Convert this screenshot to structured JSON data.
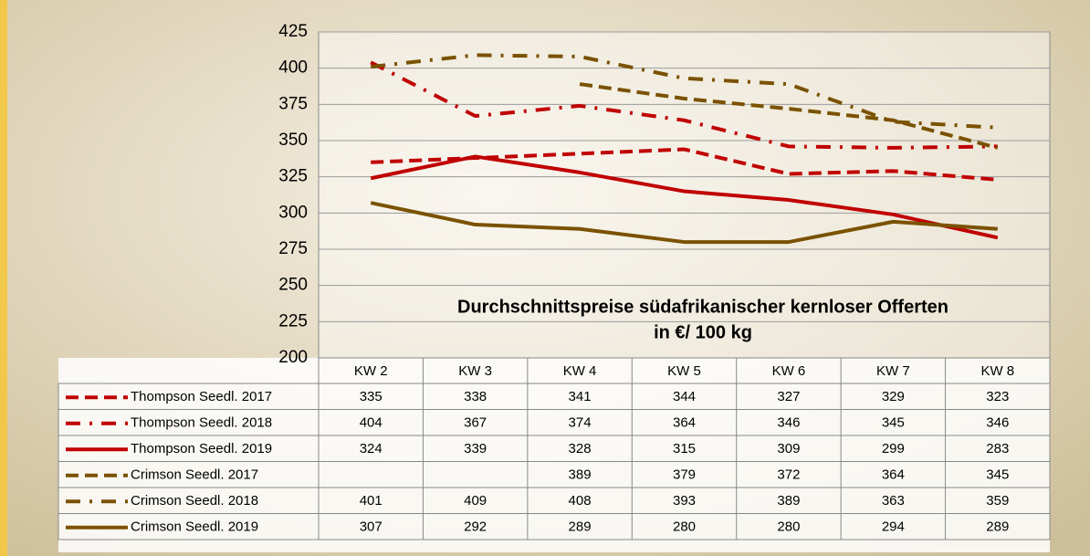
{
  "chart_data": {
    "type": "line",
    "title": "Durchschnittspreise südafrikanischer kernloser Offerten",
    "subtitle": "in €/ 100 kg",
    "categories": [
      "KW 2",
      "KW 3",
      "KW 4",
      "KW 5",
      "KW 6",
      "KW 7",
      "KW 8"
    ],
    "ylim": [
      200,
      425
    ],
    "yticks": [
      200,
      225,
      250,
      275,
      300,
      325,
      350,
      375,
      400,
      425
    ],
    "grid": true,
    "series": [
      {
        "name": "Thompson Seedl. 2017",
        "color": "#c00000",
        "style": "dashed",
        "values": [
          335,
          338,
          341,
          344,
          327,
          329,
          323
        ]
      },
      {
        "name": "Thompson Seedl. 2018",
        "color": "#c00000",
        "style": "dashdot",
        "values": [
          404,
          367,
          374,
          364,
          346,
          345,
          346
        ]
      },
      {
        "name": "Thompson Seedl. 2019",
        "color": "#c00000",
        "style": "solid",
        "values": [
          324,
          339,
          328,
          315,
          309,
          299,
          283
        ]
      },
      {
        "name": "Crimson Seedl. 2017",
        "color": "#7a5200",
        "style": "dashed",
        "values": [
          null,
          null,
          389,
          379,
          372,
          364,
          345
        ]
      },
      {
        "name": "Crimson Seedl. 2018",
        "color": "#7a5200",
        "style": "dashdot",
        "values": [
          401,
          409,
          408,
          393,
          389,
          363,
          359
        ]
      },
      {
        "name": "Crimson Seedl. 2019",
        "color": "#7a5200",
        "style": "solid",
        "values": [
          307,
          292,
          289,
          280,
          280,
          294,
          289
        ]
      }
    ]
  }
}
